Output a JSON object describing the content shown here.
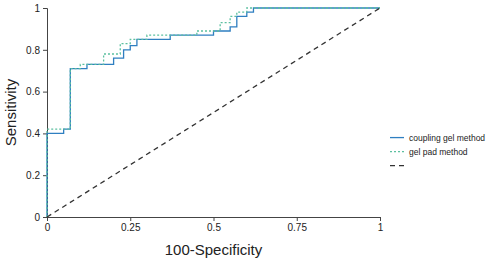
{
  "chart_data": {
    "type": "line",
    "x_label": "100-Specificity",
    "y_label": "Sensitivity",
    "xlim": [
      0,
      1
    ],
    "ylim": [
      0,
      1
    ],
    "xticks": [
      0,
      0.25,
      0.5,
      0.75,
      1
    ],
    "yticks": [
      0,
      0.2,
      0.4,
      0.6,
      0.8,
      1
    ],
    "grid": false,
    "legend": "right",
    "series": [
      {
        "name": "coupling gel method",
        "color": "#2f7fc1",
        "line_style": "solid",
        "x": [
          0,
          0,
          0.05,
          0.05,
          0.07,
          0.07,
          0.12,
          0.12,
          0.2,
          0.2,
          0.23,
          0.23,
          0.25,
          0.25,
          0.27,
          0.27,
          0.37,
          0.37,
          0.5,
          0.5,
          0.55,
          0.55,
          0.57,
          0.57,
          0.6,
          0.6,
          0.62,
          0.62,
          1
        ],
        "values": [
          0,
          0.4,
          0.4,
          0.42,
          0.42,
          0.71,
          0.71,
          0.73,
          0.73,
          0.76,
          0.76,
          0.8,
          0.8,
          0.82,
          0.82,
          0.85,
          0.85,
          0.87,
          0.87,
          0.89,
          0.89,
          0.91,
          0.91,
          0.96,
          0.96,
          0.98,
          0.98,
          1,
          1
        ]
      },
      {
        "name": "gel pad method",
        "color": "#5cc0a0",
        "line_style": "dotted",
        "x": [
          0,
          0,
          0.07,
          0.07,
          0.1,
          0.1,
          0.17,
          0.17,
          0.22,
          0.22,
          0.25,
          0.25,
          0.3,
          0.3,
          0.45,
          0.45,
          0.52,
          0.52,
          0.55,
          0.55,
          0.57,
          0.57,
          0.6,
          0.6,
          1
        ],
        "values": [
          0,
          0.42,
          0.42,
          0.71,
          0.71,
          0.73,
          0.73,
          0.78,
          0.78,
          0.83,
          0.83,
          0.85,
          0.85,
          0.87,
          0.87,
          0.89,
          0.89,
          0.93,
          0.93,
          0.96,
          0.96,
          0.98,
          0.98,
          1,
          1
        ]
      },
      {
        "color": "#333333",
        "line_style": "dashed",
        "x": [
          0,
          1
        ],
        "values": [
          0,
          1
        ]
      }
    ]
  }
}
